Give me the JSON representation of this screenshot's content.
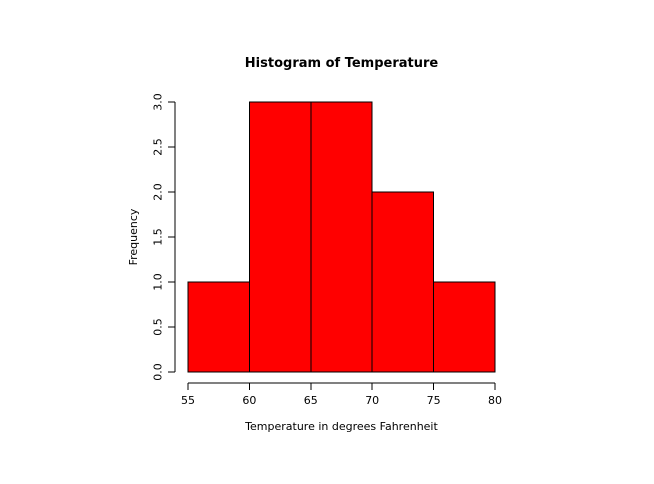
{
  "chart_data": {
    "type": "bar",
    "subtype": "histogram",
    "title": "Histogram of Temperature",
    "xlabel": "Temperature in degrees Fahrenheit",
    "ylabel": "Frequency",
    "breaks": [
      55,
      60,
      65,
      70,
      75,
      80
    ],
    "counts": [
      1,
      3,
      3,
      2,
      1
    ],
    "x_ticks": [
      55,
      60,
      65,
      70,
      75,
      80
    ],
    "x_tick_labels": [
      "55",
      "60",
      "65",
      "70",
      "75",
      "80"
    ],
    "y_ticks": [
      0,
      0.5,
      1,
      1.5,
      2,
      2.5,
      3
    ],
    "y_tick_labels": [
      "0.0",
      "0.5",
      "1.0",
      "1.5",
      "2.0",
      "2.5",
      "3.0"
    ],
    "xlim": [
      55,
      80
    ],
    "ylim": [
      0,
      3
    ],
    "grid": "off",
    "legend": "none",
    "y_tick_label_orientation": "rotated-90",
    "bar_fill": "#FF0000",
    "bar_border": "#000000",
    "axis_color": "#000000",
    "background": "#FFFFFF"
  }
}
